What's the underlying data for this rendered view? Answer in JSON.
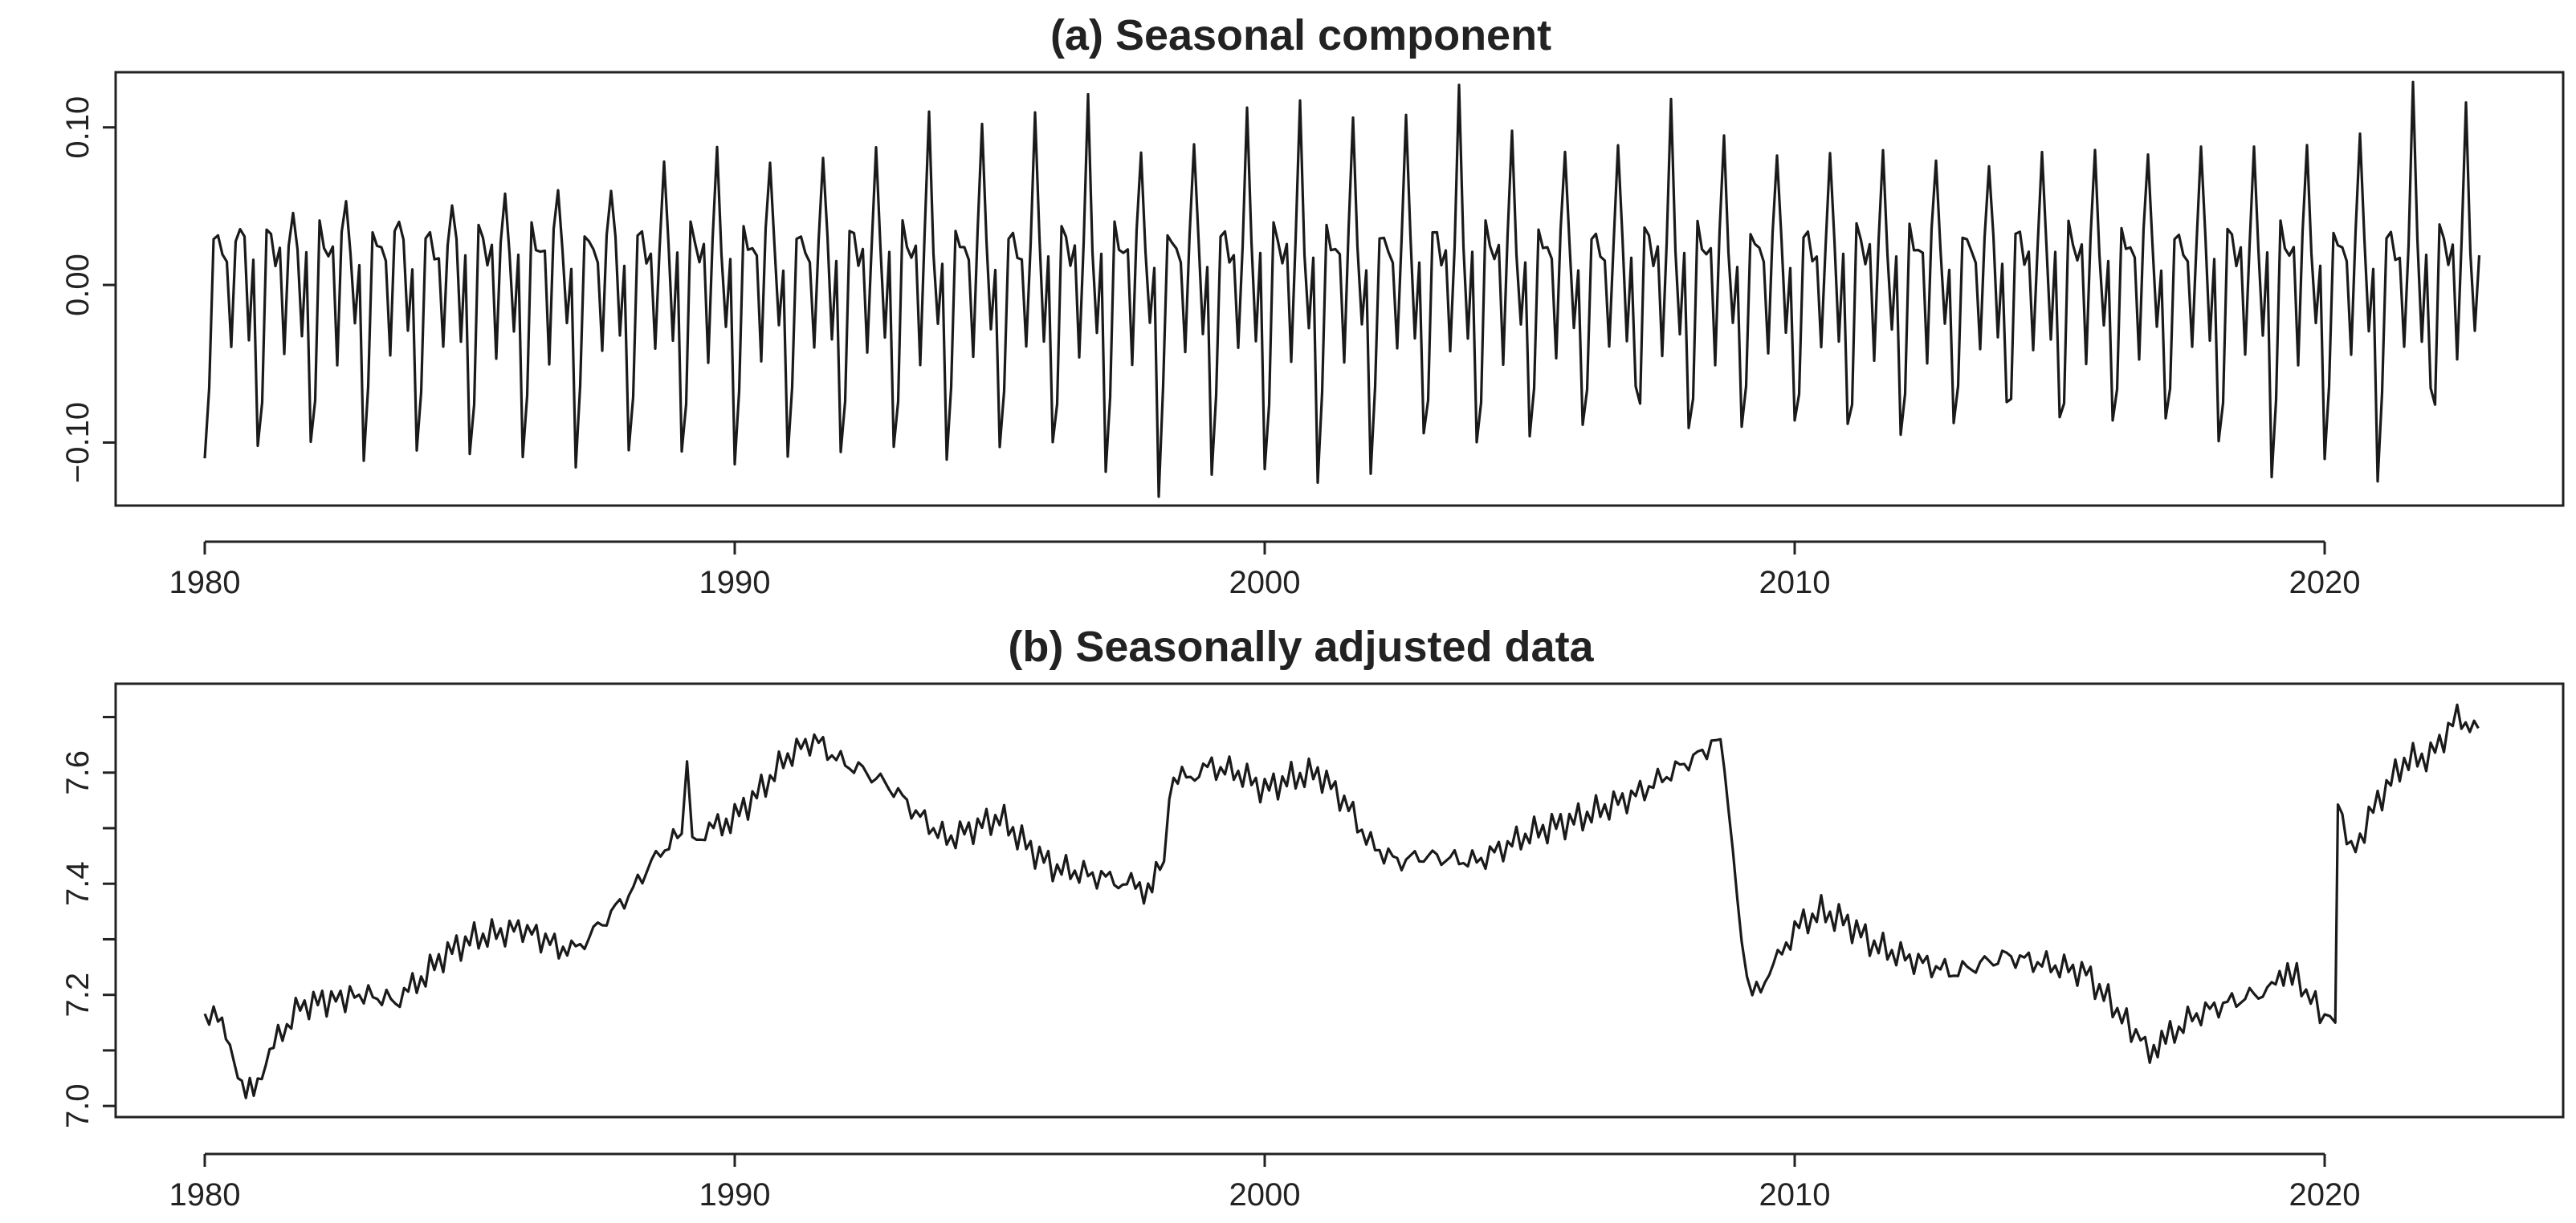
{
  "chart_data": [
    {
      "type": "line",
      "title": "(a) Seasonal component",
      "xlabel": "",
      "ylabel": "",
      "xlim": [
        1980,
        2023
      ],
      "ylim": [
        -0.14,
        0.135
      ],
      "x_ticks": [
        1980,
        1990,
        2000,
        2010,
        2020
      ],
      "x_tick_labels": [
        "1980",
        "1990",
        "2000",
        "2010",
        "2020"
      ],
      "y_ticks": [
        -0.1,
        0.0,
        0.1
      ],
      "y_tick_labels": [
        "−0.10",
        "0.00",
        "0.10"
      ],
      "frequency": "monthly",
      "start": 1980.0,
      "end": 2022.917,
      "description_of_series": "Monthly seasonal factors; yearly pattern with a deep January trough and one large positive spike per year",
      "yearly_pattern": {
        "month_offsets": [
          -0.11,
          -0.07,
          0.035,
          0.028,
          0.018,
          0.02,
          -0.045,
          0.03,
          0.035,
          0.025,
          -0.03,
          0.015
        ],
        "yearly_peak": [
          0.038,
          0.04,
          0.052,
          0.046,
          0.05,
          0.052,
          0.062,
          0.065,
          0.075,
          0.083,
          0.082,
          0.084,
          0.082,
          0.108,
          0.108,
          0.11,
          0.115,
          0.085,
          0.095,
          0.11,
          0.112,
          0.11,
          0.112,
          0.122,
          0.095,
          0.09,
          0.09,
          0.112,
          0.095,
          0.088,
          0.082,
          0.08,
          0.082,
          0.08,
          0.08,
          0.082,
          0.088,
          0.09,
          0.082,
          0.088,
          0.102,
          0.128,
          0.11
        ],
        "yearly_trough": [
          -0.11,
          -0.108,
          -0.098,
          -0.106,
          -0.108,
          -0.112,
          -0.105,
          -0.112,
          -0.11,
          -0.108,
          -0.108,
          -0.108,
          -0.112,
          -0.102,
          -0.105,
          -0.105,
          -0.105,
          -0.115,
          -0.13,
          -0.125,
          -0.12,
          -0.12,
          -0.118,
          -0.1,
          -0.1,
          -0.09,
          -0.09,
          -0.07,
          -0.088,
          -0.085,
          -0.09,
          -0.092,
          -0.09,
          -0.085,
          -0.08,
          -0.085,
          -0.08,
          -0.085,
          -0.105,
          -0.12,
          -0.105,
          -0.128,
          -0.07
        ]
      }
    },
    {
      "type": "line",
      "title": "(b) Seasonally adjusted data",
      "xlabel": "",
      "ylabel": "",
      "xlim": [
        1980,
        2023
      ],
      "ylim": [
        6.98,
        7.76
      ],
      "x_ticks": [
        1980,
        1990,
        2000,
        2010,
        2020
      ],
      "x_tick_labels": [
        "1980",
        "1990",
        "2000",
        "2010",
        "2020"
      ],
      "y_ticks": [
        7.0,
        7.1,
        7.2,
        7.3,
        7.4,
        7.5,
        7.6,
        7.7
      ],
      "y_tick_labels": [
        "7.0",
        "",
        "7.2",
        "",
        "7.4",
        "",
        "7.6",
        ""
      ],
      "frequency": "monthly",
      "x": [
        1980.0,
        1980.25,
        1980.55,
        1980.7,
        1981.0,
        1981.3,
        1981.8,
        1982.3,
        1983.0,
        1983.6,
        1984.0,
        1984.5,
        1985.0,
        1986.0,
        1986.6,
        1987.0,
        1987.5,
        1988.0,
        1988.6,
        1989.0,
        1989.1,
        1989.2,
        1990.0,
        1990.5,
        1991.0,
        1991.5,
        1992.0,
        1992.5,
        1993.0,
        1993.5,
        1994.0,
        1994.5,
        1995.0,
        1995.5,
        1996.0,
        1997.0,
        1997.8,
        1998.1,
        1998.2,
        1999.0,
        1999.5,
        2000.0,
        2000.5,
        2001.0,
        2001.5,
        2002.0,
        2002.5,
        2003.0,
        2004.0,
        2005.0,
        2006.0,
        2007.0,
        2008.0,
        2008.6,
        2008.75,
        2009.0,
        2009.2,
        2009.6,
        2010.0,
        2010.5,
        2011.0,
        2011.5,
        2012.0,
        2013.0,
        2014.0,
        2015.0,
        2015.5,
        2016.0,
        2016.7,
        2017.0,
        2017.5,
        2018.0,
        2019.0,
        2019.3,
        2020.0,
        2020.2,
        2020.25,
        2020.5,
        2021.0,
        2021.5,
        2022.0,
        2022.5,
        2022.9
      ],
      "values": [
        7.14,
        7.18,
        7.08,
        7.02,
        7.05,
        7.11,
        7.18,
        7.19,
        7.2,
        7.19,
        7.22,
        7.27,
        7.3,
        7.32,
        7.29,
        7.28,
        7.33,
        7.38,
        7.46,
        7.49,
        7.62,
        7.48,
        7.52,
        7.57,
        7.63,
        7.66,
        7.62,
        7.6,
        7.57,
        7.52,
        7.48,
        7.5,
        7.52,
        7.47,
        7.43,
        7.41,
        7.39,
        7.44,
        7.58,
        7.61,
        7.6,
        7.57,
        7.59,
        7.6,
        7.55,
        7.47,
        7.44,
        7.45,
        7.44,
        7.49,
        7.52,
        7.56,
        7.62,
        7.66,
        7.55,
        7.28,
        7.2,
        7.25,
        7.32,
        7.35,
        7.33,
        7.29,
        7.27,
        7.24,
        7.27,
        7.25,
        7.24,
        7.18,
        7.1,
        7.12,
        7.16,
        7.18,
        7.21,
        7.25,
        7.16,
        7.15,
        7.56,
        7.45,
        7.55,
        7.62,
        7.63,
        7.7,
        7.68
      ]
    }
  ]
}
